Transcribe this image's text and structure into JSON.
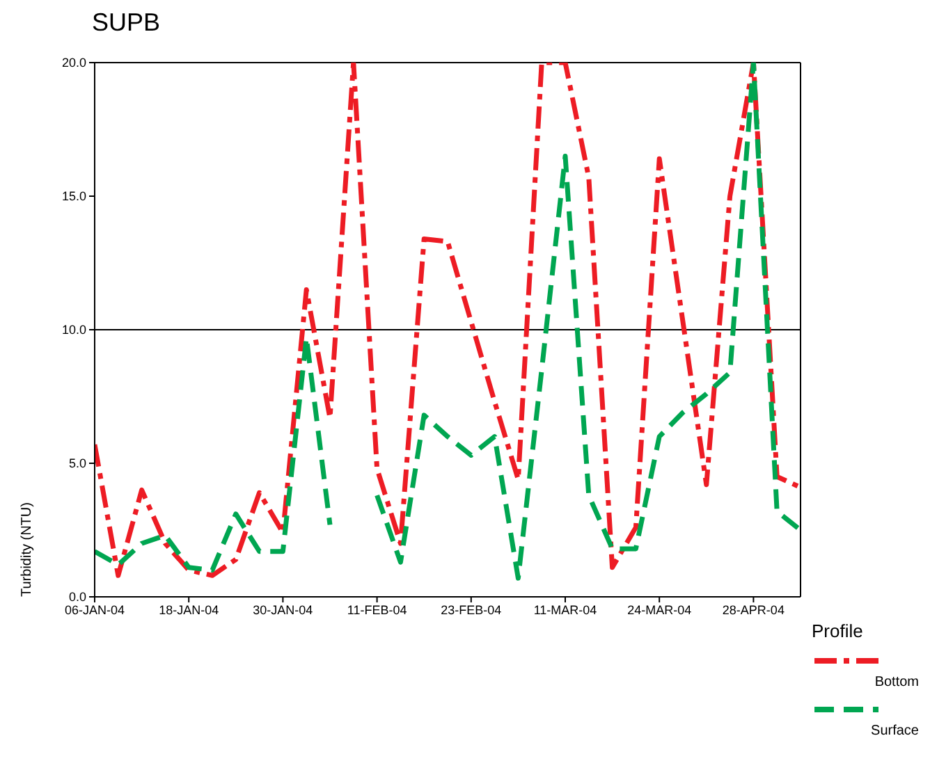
{
  "chart_data": {
    "type": "line",
    "title": "SUPB",
    "ylabel": "Turbidity (NTU)",
    "legend_title": "Profile",
    "categories": [
      "06-JAN-04",
      null,
      null,
      null,
      "18-JAN-04",
      null,
      null,
      null,
      "30-JAN-04",
      null,
      null,
      null,
      "11-FEB-04",
      null,
      null,
      null,
      "23-FEB-04",
      null,
      null,
      null,
      "11-MAR-04",
      null,
      null,
      null,
      "24-MAR-04",
      null,
      null,
      null,
      "28-APR-04",
      null,
      null
    ],
    "series": [
      {
        "name": "Bottom",
        "color": "#ed1c24",
        "line_style": "dashdot",
        "values": [
          5.7,
          0.8,
          4.0,
          2.0,
          1.0,
          0.8,
          1.4,
          3.9,
          2.4,
          11.5,
          6.7,
          20,
          4.8,
          2.0,
          13.4,
          13.3,
          10.3,
          7.3,
          4.4,
          20,
          20,
          15.7,
          1.1,
          2.6,
          16.4,
          10.3,
          4.2,
          15.0,
          20,
          4.5,
          4.1
        ]
      },
      {
        "name": "Surface",
        "color": "#00a651",
        "line_style": "dashed",
        "values": [
          1.7,
          1.2,
          2.0,
          2.3,
          1.1,
          1.0,
          3.1,
          1.7,
          1.7,
          9.7,
          2.7,
          null,
          3.8,
          1.3,
          6.8,
          6.0,
          5.3,
          6.0,
          0.7,
          8.5,
          16.5,
          3.8,
          1.8,
          1.8,
          6.0,
          6.9,
          7.6,
          8.4,
          20,
          3.2,
          2.5
        ]
      }
    ],
    "ylim": [
      0,
      20
    ],
    "yticks": [
      {
        "value": 0,
        "label": "0.0"
      },
      {
        "value": 5,
        "label": "5.0"
      },
      {
        "value": 10,
        "label": "10.0"
      },
      {
        "value": 15,
        "label": "15.0"
      },
      {
        "value": 20,
        "label": "20.0"
      }
    ],
    "ref_lines": [
      {
        "axis": "y",
        "value": 10,
        "color": "#000000"
      }
    ],
    "legend": "bottom right",
    "marker": "none"
  }
}
